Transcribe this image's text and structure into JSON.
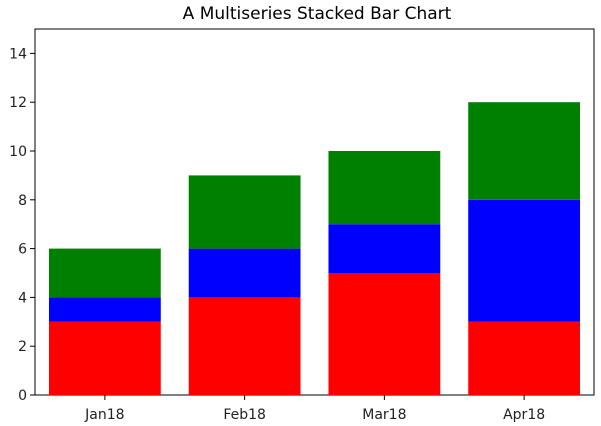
{
  "chart_data": {
    "type": "bar",
    "stacked": true,
    "title": "A Multiseries Stacked Bar Chart",
    "xlabel": "",
    "ylabel": "",
    "categories": [
      "Jan18",
      "Feb18",
      "Mar18",
      "Apr18"
    ],
    "series": [
      {
        "values": [
          3,
          4,
          5,
          3
        ],
        "color": "#ff0000"
      },
      {
        "values": [
          1,
          2,
          2,
          5
        ],
        "color": "#0000ff"
      },
      {
        "values": [
          2,
          3,
          3,
          4
        ],
        "color": "#008000"
      }
    ],
    "ylim": [
      0,
      15
    ],
    "yticks": [
      0,
      2,
      4,
      6,
      8,
      10,
      12,
      14
    ],
    "grid": false,
    "legend": "none"
  }
}
